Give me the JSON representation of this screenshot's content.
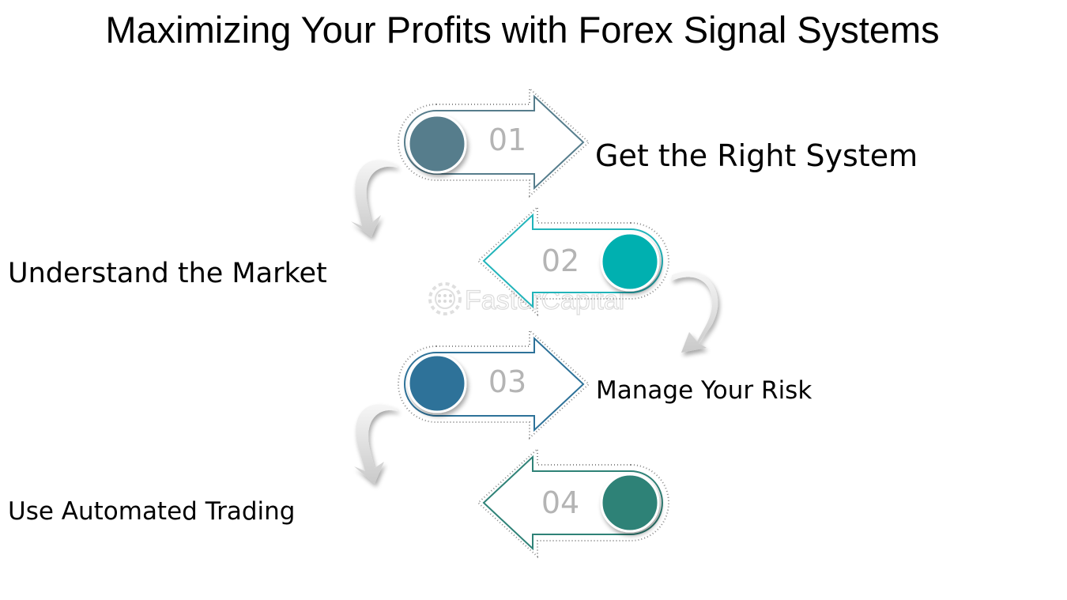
{
  "title": "Maximizing Your Profits with Forex Signal Systems",
  "steps": [
    {
      "number": "01",
      "label": "Get the Right System",
      "direction": "right",
      "circle_color": "#567d8c",
      "outline_color": "#567d8c"
    },
    {
      "number": "02",
      "label": "Understand the Market",
      "direction": "left",
      "circle_color": "#00b0b0",
      "outline_color": "#22b4ba"
    },
    {
      "number": "03",
      "label": "Manage Your Risk",
      "direction": "right",
      "circle_color": "#2e7299",
      "outline_color": "#2e7299"
    },
    {
      "number": "04",
      "label": "Use Automated Trading",
      "direction": "left",
      "circle_color": "#2f8277",
      "outline_color": "#2f8277"
    }
  ],
  "watermark": {
    "text": "FasterCapital",
    "icon": "gear-icon"
  },
  "connector_icon": "curved-arrow-icon"
}
